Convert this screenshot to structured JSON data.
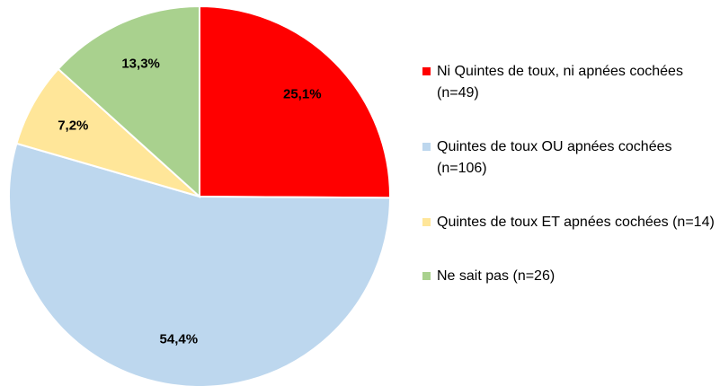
{
  "chart_data": {
    "type": "pie",
    "categories": [
      "Ni Quintes de toux, ni apnées cochées (n=49)",
      "Quintes de toux OU apnées cochées (n=106)",
      "Quintes de toux ET apnées cochées (n=14)",
      "Ne sait pas (n=26)"
    ],
    "values": [
      25.1,
      54.4,
      7.2,
      13.3
    ],
    "value_labels": [
      "25,1%",
      "54,4%",
      "7,2%",
      "13,3%"
    ],
    "colors": [
      "#ff0000",
      "#bdd7ee",
      "#ffe699",
      "#a9d18e"
    ],
    "legend": "right"
  }
}
